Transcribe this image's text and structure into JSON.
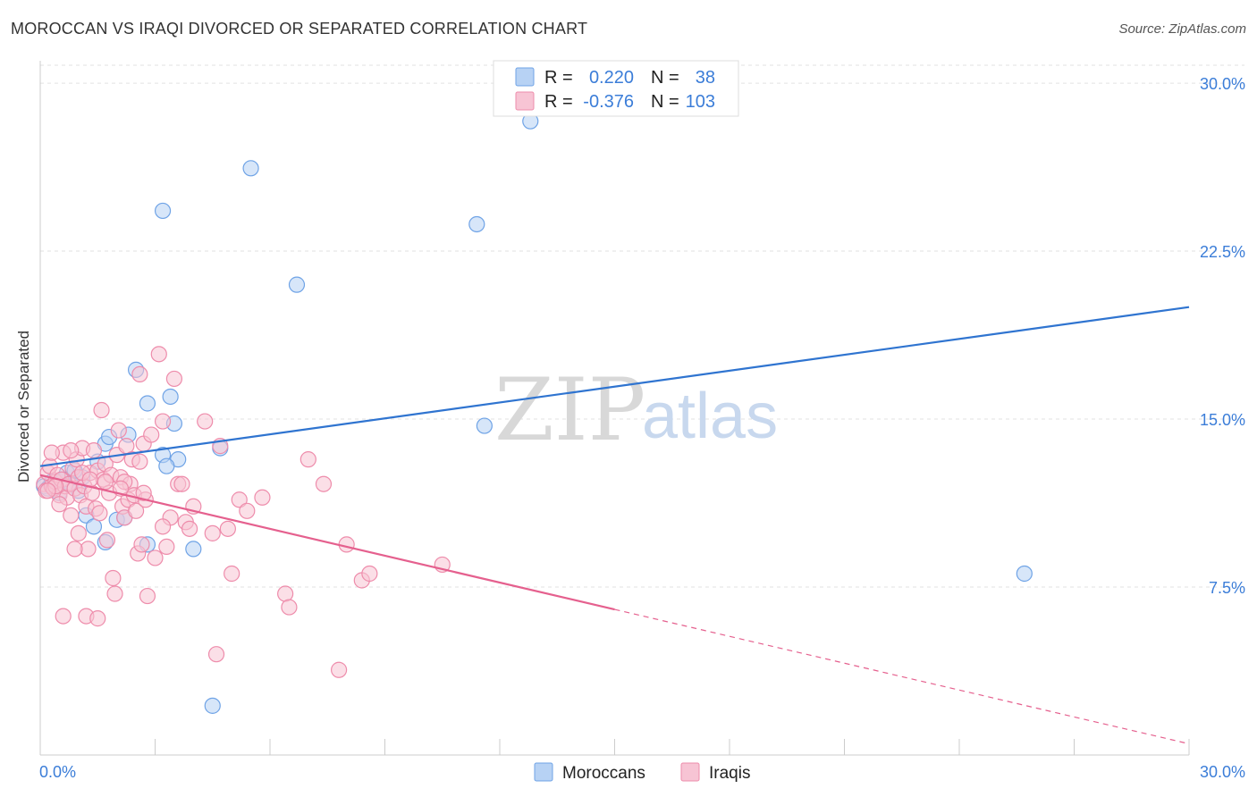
{
  "chart_data": {
    "type": "scatter",
    "title": "MOROCCAN VS IRAQI DIVORCED OR SEPARATED CORRELATION CHART",
    "source": "Source: ZipAtlas.com",
    "xlabel": "",
    "ylabel": "Divorced or Separated",
    "xlim": [
      0,
      30
    ],
    "ylim": [
      0,
      31
    ],
    "x_tick_labels": [
      "0.0%",
      "30.0%"
    ],
    "y_ticks": [
      7.5,
      15.0,
      22.5,
      30.0
    ],
    "y_tick_labels": [
      "7.5%",
      "15.0%",
      "22.5%",
      "30.0%"
    ],
    "grid": true,
    "watermark": {
      "zip": "ZIP",
      "atlas": "atlas"
    },
    "legend_stats": [
      {
        "r_label": "R =",
        "r_value": "0.220",
        "n_label": "N =",
        "n_value": "38"
      },
      {
        "r_label": "R =",
        "r_value": "-0.376",
        "n_label": "N =",
        "n_value": "103"
      }
    ],
    "series": [
      {
        "name": "Moroccans",
        "color": "#6fa3e6",
        "fill": "#b7d2f4",
        "line_color": "#2f74d0",
        "trend": {
          "x0": 0,
          "y0": 12.9,
          "x1": 30,
          "y1": 20.0,
          "dashed_from": null
        },
        "points": [
          [
            0.1,
            12.0
          ],
          [
            0.2,
            11.9
          ],
          [
            0.3,
            12.2
          ],
          [
            0.4,
            12.0
          ],
          [
            0.5,
            11.7
          ],
          [
            0.7,
            12.6
          ],
          [
            0.8,
            12.1
          ],
          [
            1.0,
            11.8
          ],
          [
            1.1,
            12.4
          ],
          [
            1.2,
            10.7
          ],
          [
            1.4,
            10.2
          ],
          [
            1.5,
            13.1
          ],
          [
            1.7,
            13.9
          ],
          [
            1.8,
            14.2
          ],
          [
            2.0,
            10.5
          ],
          [
            2.2,
            10.6
          ],
          [
            2.5,
            17.2
          ],
          [
            2.8,
            15.7
          ],
          [
            3.2,
            13.4
          ],
          [
            3.4,
            16.0
          ],
          [
            3.6,
            13.2
          ],
          [
            2.8,
            9.4
          ],
          [
            3.2,
            24.3
          ],
          [
            3.5,
            14.8
          ],
          [
            4.5,
            2.2
          ],
          [
            4.7,
            13.7
          ],
          [
            5.5,
            26.2
          ],
          [
            6.7,
            21.0
          ],
          [
            11.4,
            23.7
          ],
          [
            12.8,
            28.3
          ],
          [
            11.6,
            14.7
          ],
          [
            25.7,
            8.1
          ],
          [
            2.3,
            14.3
          ],
          [
            1.7,
            9.5
          ],
          [
            3.3,
            12.9
          ],
          [
            0.9,
            12.7
          ],
          [
            4.0,
            9.2
          ],
          [
            0.6,
            12.3
          ]
        ]
      },
      {
        "name": "Iraqis",
        "color": "#ee8cab",
        "fill": "#f7c4d4",
        "line_color": "#e5608e",
        "trend": {
          "x0": 0,
          "y0": 12.5,
          "x1": 30,
          "y1": 0.5,
          "dashed_from": 15.0
        },
        "points": [
          [
            0.1,
            12.1
          ],
          [
            0.15,
            11.8
          ],
          [
            0.2,
            12.6
          ],
          [
            0.25,
            12.9
          ],
          [
            0.3,
            12.0
          ],
          [
            0.35,
            11.9
          ],
          [
            0.4,
            12.2
          ],
          [
            0.45,
            12.5
          ],
          [
            0.5,
            11.6
          ],
          [
            0.55,
            12.3
          ],
          [
            0.6,
            13.5
          ],
          [
            0.65,
            12.0
          ],
          [
            0.7,
            11.5
          ],
          [
            0.75,
            12.1
          ],
          [
            0.8,
            10.7
          ],
          [
            0.85,
            12.8
          ],
          [
            0.9,
            11.9
          ],
          [
            0.95,
            13.2
          ],
          [
            1.0,
            12.4
          ],
          [
            1.05,
            11.6
          ],
          [
            1.1,
            13.7
          ],
          [
            1.15,
            12.0
          ],
          [
            1.2,
            11.1
          ],
          [
            1.25,
            9.2
          ],
          [
            1.3,
            12.6
          ],
          [
            1.35,
            11.7
          ],
          [
            1.4,
            13.6
          ],
          [
            1.45,
            11.0
          ],
          [
            1.5,
            12.7
          ],
          [
            1.55,
            10.8
          ],
          [
            1.6,
            15.4
          ],
          [
            1.65,
            12.3
          ],
          [
            1.7,
            13.0
          ],
          [
            1.75,
            9.6
          ],
          [
            1.8,
            11.7
          ],
          [
            1.85,
            12.5
          ],
          [
            1.9,
            7.9
          ],
          [
            1.95,
            7.2
          ],
          [
            2.0,
            13.4
          ],
          [
            2.05,
            14.5
          ],
          [
            2.1,
            12.4
          ],
          [
            2.15,
            11.1
          ],
          [
            2.2,
            10.6
          ],
          [
            2.25,
            13.8
          ],
          [
            2.3,
            11.4
          ],
          [
            2.35,
            12.1
          ],
          [
            2.4,
            13.2
          ],
          [
            2.45,
            11.6
          ],
          [
            2.5,
            10.9
          ],
          [
            2.55,
            9.0
          ],
          [
            2.6,
            17.0
          ],
          [
            2.65,
            9.4
          ],
          [
            2.7,
            13.9
          ],
          [
            2.75,
            11.4
          ],
          [
            2.8,
            7.1
          ],
          [
            2.9,
            14.3
          ],
          [
            3.0,
            8.8
          ],
          [
            3.1,
            17.9
          ],
          [
            3.2,
            14.9
          ],
          [
            3.3,
            9.3
          ],
          [
            3.4,
            10.6
          ],
          [
            3.5,
            16.8
          ],
          [
            3.6,
            12.1
          ],
          [
            3.8,
            10.4
          ],
          [
            3.9,
            10.1
          ],
          [
            4.0,
            11.1
          ],
          [
            4.3,
            14.9
          ],
          [
            4.5,
            9.9
          ],
          [
            4.6,
            4.5
          ],
          [
            4.7,
            13.8
          ],
          [
            4.9,
            10.1
          ],
          [
            5.0,
            8.1
          ],
          [
            5.2,
            11.4
          ],
          [
            5.4,
            10.9
          ],
          [
            5.8,
            11.5
          ],
          [
            6.4,
            7.2
          ],
          [
            6.5,
            6.6
          ],
          [
            7.0,
            13.2
          ],
          [
            7.4,
            12.1
          ],
          [
            7.8,
            3.8
          ],
          [
            8.0,
            9.4
          ],
          [
            8.4,
            7.8
          ],
          [
            8.6,
            8.1
          ],
          [
            10.5,
            8.5
          ],
          [
            0.3,
            13.5
          ],
          [
            0.6,
            6.2
          ],
          [
            0.9,
            9.2
          ],
          [
            1.2,
            6.2
          ],
          [
            1.5,
            6.1
          ],
          [
            2.2,
            12.2
          ],
          [
            2.7,
            11.7
          ],
          [
            3.2,
            10.2
          ],
          [
            1.1,
            12.6
          ],
          [
            0.5,
            11.2
          ],
          [
            0.8,
            13.6
          ],
          [
            1.3,
            12.3
          ],
          [
            2.1,
            11.9
          ],
          [
            2.6,
            13.1
          ],
          [
            0.4,
            12.0
          ],
          [
            0.2,
            11.8
          ],
          [
            1.0,
            9.9
          ],
          [
            1.7,
            12.2
          ],
          [
            3.7,
            12.1
          ]
        ]
      }
    ]
  }
}
